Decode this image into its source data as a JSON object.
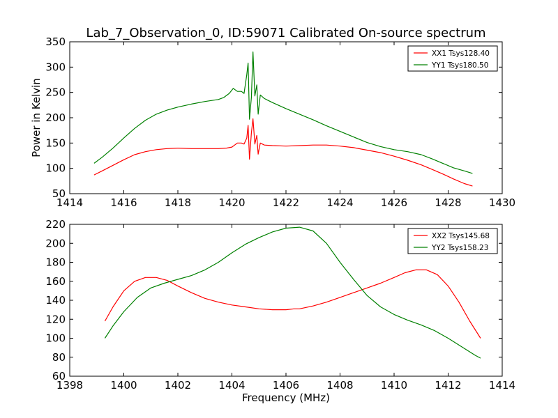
{
  "chart_data": [
    {
      "type": "line",
      "title": "Lab_7_Observation_0, ID:59071 Calibrated On-source spectrum",
      "xlabel": "",
      "ylabel": "Power in Kelvin",
      "xlim": [
        1414,
        1430
      ],
      "ylim": [
        50,
        350
      ],
      "xticks": [
        1414,
        1416,
        1418,
        1420,
        1422,
        1424,
        1426,
        1428,
        1430
      ],
      "yticks": [
        50,
        100,
        150,
        200,
        250,
        300,
        350
      ],
      "legend_position": "top-right",
      "series": [
        {
          "name": "XX1 Tsys128.40",
          "color": "#ff0000",
          "x": [
            1414.9,
            1415.2,
            1415.6,
            1416.0,
            1416.4,
            1416.8,
            1417.2,
            1417.6,
            1418.0,
            1418.5,
            1419.0,
            1419.5,
            1419.8,
            1420.0,
            1420.2,
            1420.35,
            1420.45,
            1420.55,
            1420.6,
            1420.65,
            1420.72,
            1420.78,
            1420.85,
            1420.92,
            1420.97,
            1421.05,
            1421.2,
            1421.5,
            1422.0,
            1422.5,
            1423.0,
            1423.5,
            1424.0,
            1424.5,
            1425.0,
            1425.5,
            1426.0,
            1426.5,
            1427.0,
            1427.4,
            1427.8,
            1428.2,
            1428.6,
            1428.9
          ],
          "y": [
            87,
            95,
            106,
            117,
            127,
            133,
            137,
            139,
            140,
            139,
            139,
            139,
            140,
            142,
            150,
            150,
            148,
            160,
            185,
            118,
            170,
            198,
            148,
            165,
            128,
            150,
            146,
            145,
            144,
            145,
            146,
            146,
            144,
            141,
            136,
            131,
            124,
            116,
            107,
            98,
            89,
            79,
            70,
            65
          ]
        },
        {
          "name": "YY1 Tsys180.50",
          "color": "#008000",
          "x": [
            1414.9,
            1415.2,
            1415.6,
            1416.0,
            1416.4,
            1416.8,
            1417.2,
            1417.6,
            1418.0,
            1418.5,
            1419.0,
            1419.5,
            1419.7,
            1419.9,
            1420.05,
            1420.2,
            1420.35,
            1420.45,
            1420.55,
            1420.6,
            1420.65,
            1420.72,
            1420.78,
            1420.85,
            1420.92,
            1420.97,
            1421.05,
            1421.2,
            1421.5,
            1422.0,
            1422.5,
            1423.0,
            1423.5,
            1424.0,
            1424.5,
            1425.0,
            1425.5,
            1426.0,
            1426.5,
            1427.0,
            1427.4,
            1427.8,
            1428.2,
            1428.6,
            1428.9
          ],
          "y": [
            110,
            122,
            140,
            160,
            179,
            195,
            207,
            215,
            221,
            227,
            232,
            236,
            240,
            248,
            258,
            252,
            252,
            248,
            285,
            308,
            197,
            240,
            330,
            243,
            265,
            207,
            245,
            238,
            230,
            218,
            207,
            196,
            184,
            173,
            162,
            151,
            143,
            137,
            133,
            127,
            119,
            110,
            101,
            95,
            90
          ]
        }
      ]
    },
    {
      "type": "line",
      "title": "",
      "xlabel": "Frequency (MHz)",
      "ylabel": "",
      "xlim": [
        1398,
        1414
      ],
      "ylim": [
        60,
        220
      ],
      "xticks": [
        1398,
        1400,
        1402,
        1404,
        1406,
        1408,
        1410,
        1412,
        1414
      ],
      "yticks": [
        60,
        80,
        100,
        120,
        140,
        160,
        180,
        200,
        220
      ],
      "legend_position": "top-right",
      "series": [
        {
          "name": "XX2 Tsys145.68",
          "color": "#ff0000",
          "x": [
            1399.3,
            1399.6,
            1400.0,
            1400.4,
            1400.8,
            1401.2,
            1401.6,
            1402.0,
            1402.5,
            1403.0,
            1403.5,
            1404.0,
            1404.5,
            1405.0,
            1405.5,
            1406.0,
            1406.3,
            1406.5,
            1407.0,
            1407.5,
            1408.0,
            1408.5,
            1409.0,
            1409.5,
            1410.0,
            1410.4,
            1410.8,
            1411.2,
            1411.6,
            1412.0,
            1412.4,
            1412.8,
            1413.2
          ],
          "y": [
            118,
            133,
            150,
            160,
            164,
            164,
            161,
            155,
            148,
            142,
            138,
            135,
            133,
            131,
            130,
            130,
            131,
            131,
            134,
            138,
            143,
            148,
            153,
            158,
            164,
            169,
            172,
            172,
            167,
            155,
            138,
            118,
            100
          ]
        },
        {
          "name": "YY2 Tsys158.23",
          "color": "#008000",
          "x": [
            1399.3,
            1399.6,
            1400.0,
            1400.5,
            1401.0,
            1401.5,
            1402.0,
            1402.5,
            1403.0,
            1403.5,
            1404.0,
            1404.5,
            1405.0,
            1405.5,
            1406.0,
            1406.5,
            1407.0,
            1407.5,
            1408.0,
            1408.5,
            1409.0,
            1409.5,
            1410.0,
            1410.5,
            1411.0,
            1411.5,
            1412.0,
            1412.5,
            1413.0,
            1413.2
          ],
          "y": [
            100,
            113,
            128,
            143,
            153,
            158,
            162,
            166,
            172,
            180,
            190,
            199,
            206,
            212,
            216,
            217,
            213,
            200,
            180,
            162,
            145,
            133,
            125,
            119,
            114,
            108,
            100,
            91,
            82,
            79
          ]
        }
      ]
    }
  ]
}
